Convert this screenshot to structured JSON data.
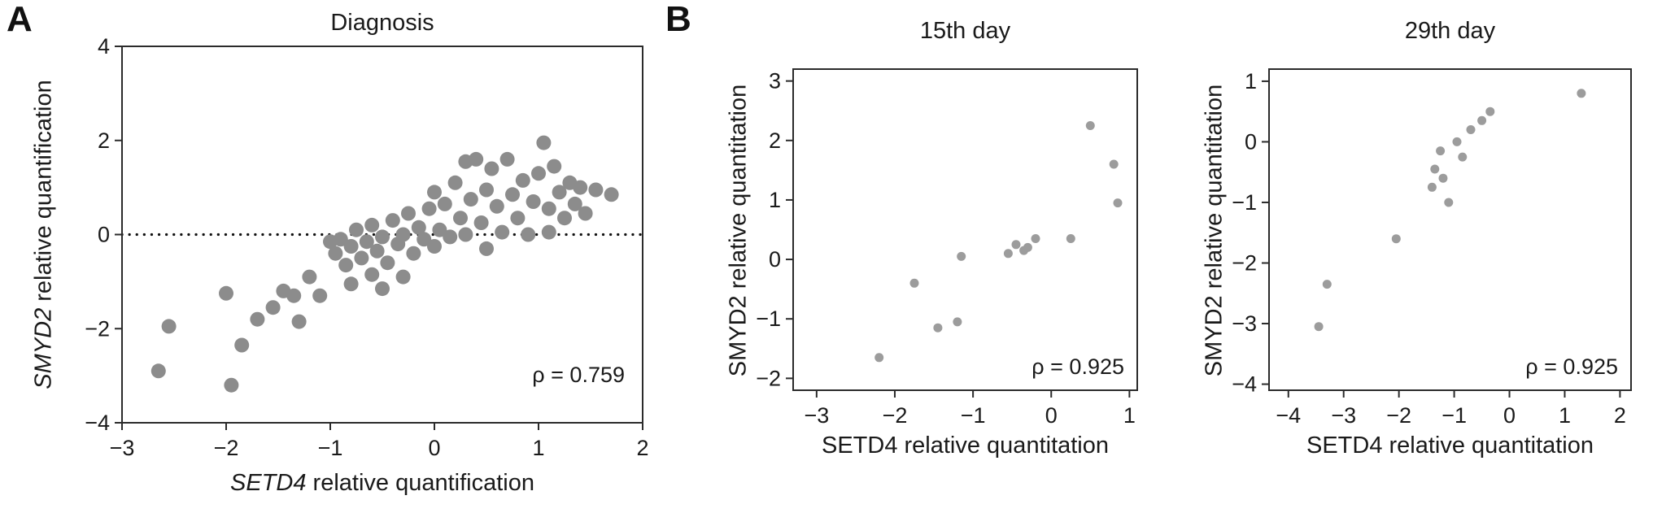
{
  "figure": {
    "background": "#ffffff",
    "panels": {
      "a": {
        "letter": "A"
      },
      "b": {
        "letter": "B"
      }
    }
  },
  "chart_data": [
    {
      "type": "scatter",
      "panel": "A",
      "title": "Diagnosis",
      "xlabel_gene": "SETD4",
      "xlabel_rest": " relative quantification",
      "ylabel_gene": "SMYD2",
      "ylabel_rest": " relative quantification",
      "xlim": [
        -3,
        2
      ],
      "ylim": [
        -4,
        4
      ],
      "xticks": [
        -3,
        -2,
        -1,
        0,
        1,
        2
      ],
      "yticks": [
        -4,
        -2,
        0,
        2,
        4
      ],
      "zero_line": true,
      "rho_label": "ρ = 0.759",
      "point_color": "#8c8c8c",
      "points": [
        [
          -2.65,
          -2.9
        ],
        [
          -2.55,
          -1.95
        ],
        [
          -2.0,
          -1.25
        ],
        [
          -1.95,
          -3.2
        ],
        [
          -1.85,
          -2.35
        ],
        [
          -1.7,
          -1.8
        ],
        [
          -1.55,
          -1.55
        ],
        [
          -1.45,
          -1.2
        ],
        [
          -1.35,
          -1.3
        ],
        [
          -1.3,
          -1.85
        ],
        [
          -1.2,
          -0.9
        ],
        [
          -1.1,
          -1.3
        ],
        [
          -1.0,
          -0.15
        ],
        [
          -0.95,
          -0.4
        ],
        [
          -0.9,
          -0.1
        ],
        [
          -0.85,
          -0.65
        ],
        [
          -0.8,
          -0.25
        ],
        [
          -0.8,
          -1.05
        ],
        [
          -0.75,
          0.1
        ],
        [
          -0.7,
          -0.5
        ],
        [
          -0.65,
          -0.15
        ],
        [
          -0.6,
          -0.85
        ],
        [
          -0.6,
          0.2
        ],
        [
          -0.55,
          -0.35
        ],
        [
          -0.5,
          -1.15
        ],
        [
          -0.5,
          -0.05
        ],
        [
          -0.45,
          -0.6
        ],
        [
          -0.4,
          0.3
        ],
        [
          -0.35,
          -0.2
        ],
        [
          -0.3,
          0.0
        ],
        [
          -0.3,
          -0.9
        ],
        [
          -0.25,
          0.45
        ],
        [
          -0.2,
          -0.4
        ],
        [
          -0.15,
          0.15
        ],
        [
          -0.1,
          -0.1
        ],
        [
          -0.05,
          0.55
        ],
        [
          0.0,
          -0.25
        ],
        [
          0.0,
          0.9
        ],
        [
          0.05,
          0.1
        ],
        [
          0.1,
          0.65
        ],
        [
          0.15,
          -0.05
        ],
        [
          0.2,
          1.1
        ],
        [
          0.25,
          0.35
        ],
        [
          0.3,
          1.55
        ],
        [
          0.3,
          0.0
        ],
        [
          0.35,
          0.75
        ],
        [
          0.4,
          1.6
        ],
        [
          0.45,
          0.25
        ],
        [
          0.5,
          0.95
        ],
        [
          0.5,
          -0.3
        ],
        [
          0.55,
          1.4
        ],
        [
          0.6,
          0.6
        ],
        [
          0.65,
          0.05
        ],
        [
          0.7,
          1.6
        ],
        [
          0.75,
          0.85
        ],
        [
          0.8,
          0.35
        ],
        [
          0.85,
          1.15
        ],
        [
          0.9,
          0.0
        ],
        [
          0.95,
          0.7
        ],
        [
          1.0,
          1.3
        ],
        [
          1.05,
          1.95
        ],
        [
          1.1,
          0.55
        ],
        [
          1.1,
          0.05
        ],
        [
          1.15,
          1.45
        ],
        [
          1.2,
          0.9
        ],
        [
          1.25,
          0.35
        ],
        [
          1.3,
          1.1
        ],
        [
          1.35,
          0.65
        ],
        [
          1.4,
          1.0
        ],
        [
          1.45,
          0.45
        ],
        [
          1.55,
          0.95
        ],
        [
          1.7,
          0.85
        ]
      ]
    },
    {
      "type": "scatter",
      "panel": "B",
      "title": "15th day",
      "xlabel": "SETD4 relative quantitation",
      "ylabel": "SMYD2 relative quantitation",
      "xlim": [
        -3.3,
        1.1
      ],
      "ylim": [
        -2.2,
        3.2
      ],
      "xticks": [
        -3,
        -2,
        -1,
        0,
        1
      ],
      "yticks": [
        -2,
        -1,
        0,
        1,
        2,
        3
      ],
      "zero_line": false,
      "rho_label": "ρ = 0.925",
      "point_color": "#9c9c9c",
      "points": [
        [
          -2.2,
          -1.65
        ],
        [
          -1.75,
          -0.4
        ],
        [
          -1.45,
          -1.15
        ],
        [
          -1.2,
          -1.05
        ],
        [
          -1.15,
          0.05
        ],
        [
          -0.55,
          0.1
        ],
        [
          -0.45,
          0.25
        ],
        [
          -0.35,
          0.15
        ],
        [
          -0.3,
          0.2
        ],
        [
          -0.2,
          0.35
        ],
        [
          0.25,
          0.35
        ],
        [
          0.5,
          2.25
        ],
        [
          0.8,
          1.6
        ],
        [
          0.85,
          0.95
        ]
      ]
    },
    {
      "type": "scatter",
      "panel": "B",
      "title": "29th day",
      "xlabel": "SETD4 relative quantitation",
      "ylabel": "SMYD2 relative quantitation",
      "xlim": [
        -4.35,
        2.2
      ],
      "ylim": [
        -4.1,
        1.2
      ],
      "xticks": [
        -4,
        -3,
        -2,
        -1,
        0,
        1,
        2
      ],
      "yticks": [
        -4,
        -3,
        -2,
        -1,
        0,
        1
      ],
      "zero_line": false,
      "rho_label": "ρ = 0.925",
      "point_color": "#9c9c9c",
      "points": [
        [
          -3.45,
          -3.05
        ],
        [
          -3.3,
          -2.35
        ],
        [
          -2.05,
          -1.6
        ],
        [
          -1.4,
          -0.75
        ],
        [
          -1.35,
          -0.45
        ],
        [
          -1.25,
          -0.15
        ],
        [
          -1.2,
          -0.6
        ],
        [
          -1.1,
          -1.0
        ],
        [
          -0.95,
          0.0
        ],
        [
          -0.85,
          -0.25
        ],
        [
          -0.7,
          0.2
        ],
        [
          -0.5,
          0.35
        ],
        [
          -0.35,
          0.5
        ],
        [
          1.3,
          0.8
        ]
      ]
    }
  ]
}
